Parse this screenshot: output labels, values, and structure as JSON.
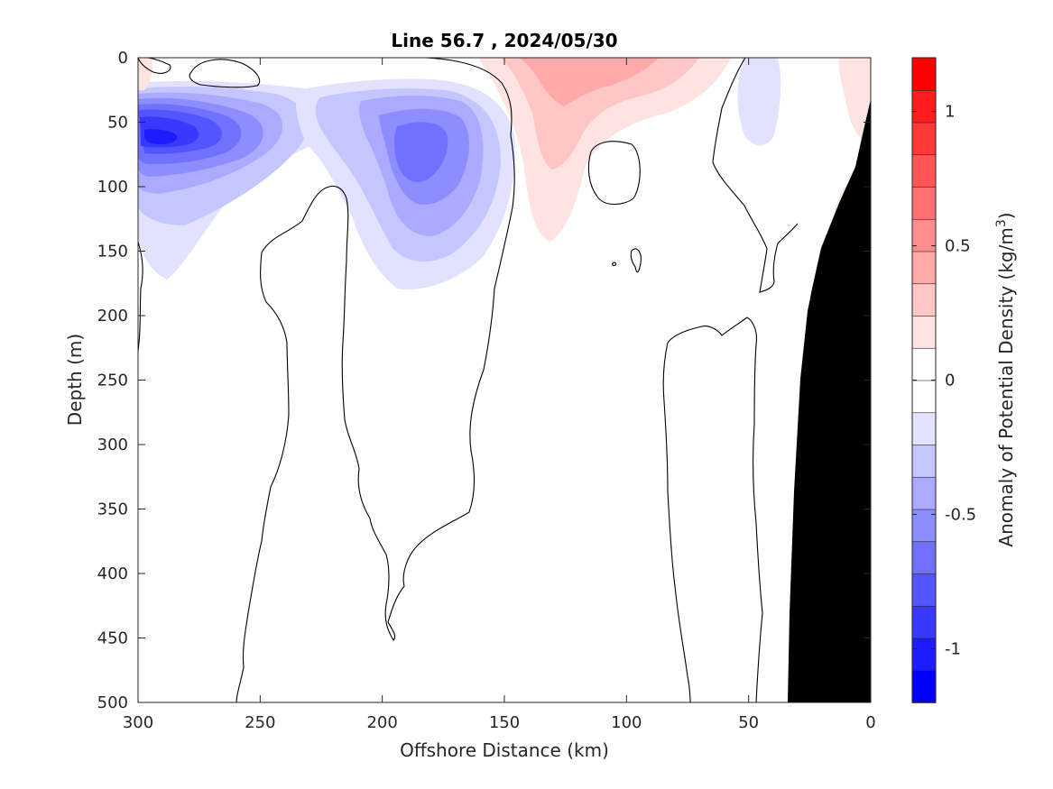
{
  "chart_data": {
    "type": "heatmap",
    "title": "Line 56.7 , 2024/05/30",
    "xlabel": "Offshore Distance (km)",
    "ylabel": "Depth (m)",
    "xlim": [
      300,
      0
    ],
    "ylim": [
      0,
      500
    ],
    "x_reversed": true,
    "y_reversed": true,
    "x_ticks": [
      "300",
      "250",
      "200",
      "150",
      "100",
      "50",
      "0"
    ],
    "y_ticks": [
      "0",
      "50",
      "100",
      "150",
      "200",
      "250",
      "300",
      "350",
      "400",
      "450",
      "500"
    ],
    "colorbar": {
      "label_prefix": "Anomaly of Potential Density (kg/m",
      "label_sup": "3",
      "label_suffix": ")",
      "range": [
        -1.2,
        1.2
      ],
      "ticks": [
        "1",
        "0.5",
        "0",
        "-0.5",
        "-1"
      ],
      "tick_values": [
        1,
        0.5,
        0,
        -0.5,
        -1
      ],
      "colors": [
        "#0000ff",
        "#1c1cff",
        "#3838ff",
        "#5555ff",
        "#7171ff",
        "#8d8dff",
        "#aaaaff",
        "#c6c6ff",
        "#e2e2ff",
        "#ffffff",
        "#ffffff",
        "#ffe2e2",
        "#ffc6c6",
        "#ffaaaa",
        "#ff8d8d",
        "#ff7171",
        "#ff5555",
        "#ff3838",
        "#ff1c1c",
        "#ff0000"
      ]
    },
    "anomaly_regions": [
      {
        "name": "negative core near 290 km, ~65 m",
        "value": -1.0
      },
      {
        "name": "negative core near 182 km, ~75 m",
        "value": -0.6
      },
      {
        "name": "positive near 125 km surface",
        "value": 0.4
      },
      {
        "name": "weak negative near 45 km, ~50 m",
        "value": -0.1
      }
    ],
    "zero_contours": 8,
    "bathymetry": {
      "color": "#000000",
      "note": "seafloor shelf near 0–35 km"
    }
  }
}
